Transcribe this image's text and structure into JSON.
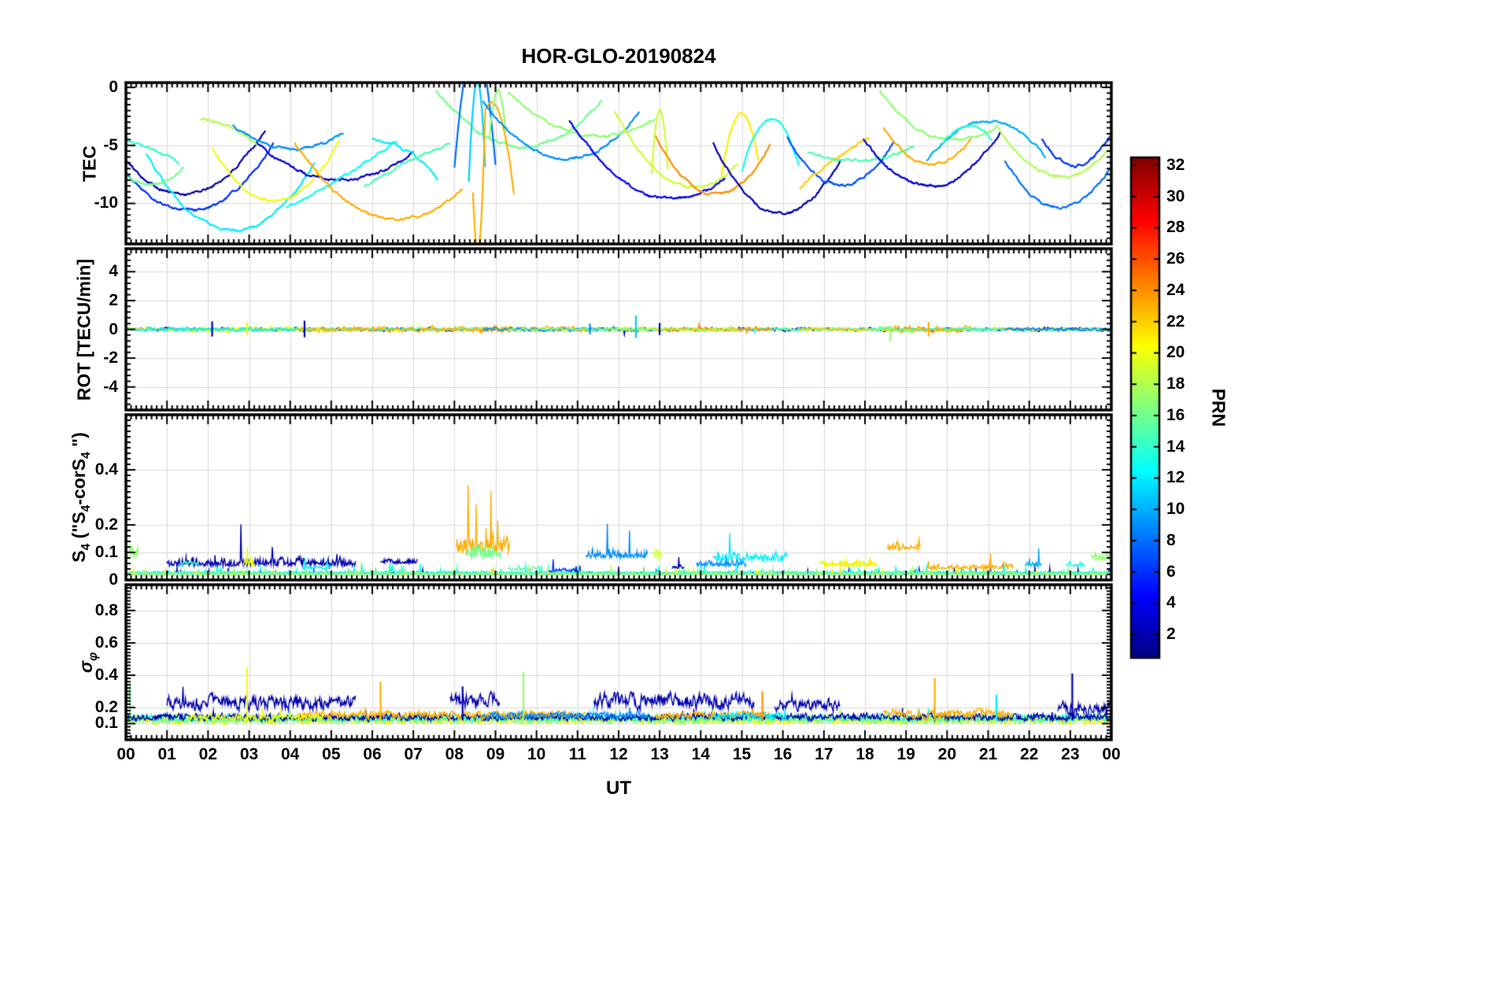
{
  "figure": {
    "title": "HOR-GLO-20190824",
    "xlabel": "UT"
  },
  "x_axis": {
    "range": [
      0,
      24
    ],
    "tick_labels": [
      "00",
      "01",
      "02",
      "03",
      "04",
      "05",
      "06",
      "07",
      "08",
      "09",
      "10",
      "11",
      "12",
      "13",
      "14",
      "15",
      "16",
      "17",
      "18",
      "19",
      "20",
      "21",
      "22",
      "23",
      "00"
    ]
  },
  "colorbar": {
    "label": "PRN",
    "colormap": "jet",
    "range": [
      0.5,
      32.5
    ],
    "ticks": [
      2,
      4,
      6,
      8,
      10,
      12,
      14,
      16,
      18,
      20,
      22,
      24,
      26,
      28,
      30,
      32
    ]
  },
  "chart_data": [
    {
      "type": "line",
      "kind": "tec",
      "ylabel_parts": [
        {
          "text": "TEC"
        }
      ],
      "ylim": [
        -13.5,
        0.4
      ],
      "yticks": [
        {
          "v": 0,
          "label": "0"
        },
        {
          "v": -5,
          "label": "-5"
        },
        {
          "v": -10,
          "label": "-10"
        }
      ],
      "yminor": 0.5,
      "series_format": "[prn, t_start, t_vertex, t_end, tec_start, tec_vertex, tec_end]",
      "series": [
        [
          2,
          0,
          0.9,
          3.4,
          -6.3,
          -8.8,
          -3.6
        ],
        [
          6,
          0,
          1.4,
          3.6,
          -7.3,
          -10.6,
          -4.8
        ],
        [
          12,
          0.5,
          2.9,
          4.6,
          -5.8,
          -12.2,
          -6.5
        ],
        [
          16,
          0,
          0.6,
          1.4,
          -7.6,
          -8.4,
          -7.0
        ],
        [
          14,
          0,
          0.5,
          1.3,
          -4.6,
          -5.1,
          -6.6
        ],
        [
          18,
          1.8,
          2.5,
          3.2,
          -2.8,
          -3.3,
          -5.0
        ],
        [
          20,
          2.1,
          3.6,
          5.2,
          -5.2,
          -9.8,
          -4.6
        ],
        [
          9,
          2.6,
          4.0,
          5.3,
          -3.3,
          -5.3,
          -3.9
        ],
        [
          3,
          3.2,
          5.2,
          7.0,
          -4.9,
          -8.0,
          -5.6
        ],
        [
          13,
          3.9,
          5.6,
          6.6,
          -10.4,
          -7.0,
          -4.6
        ],
        [
          23,
          4.1,
          6.2,
          8.2,
          -4.8,
          -11.2,
          -8.8
        ],
        [
          12,
          6.0,
          6.9,
          7.6,
          -4.5,
          -5.6,
          -7.9
        ],
        [
          15,
          5.8,
          7.0,
          7.9,
          -8.6,
          -6.2,
          -4.9
        ],
        [
          16,
          7.55,
          10.0,
          11.6,
          -0.3,
          -5.0,
          -1.1
        ],
        [
          8,
          8.0,
          8.2,
          9.0,
          -7.0,
          -0.3,
          -6.5
        ],
        [
          11,
          8.35,
          8.5,
          8.75,
          -8.2,
          -0.2,
          -7.0
        ],
        [
          23,
          8.45,
          8.62,
          8.75,
          -9.0,
          -13.2,
          -2.0
        ],
        [
          23,
          8.75,
          9.0,
          9.45,
          -2.0,
          -1.6,
          -9.2
        ],
        [
          17,
          8.85,
          9.05,
          9.25,
          -4.5,
          -0.2,
          -4.0
        ],
        [
          9,
          8.7,
          10.7,
          12.5,
          -1.2,
          -6.2,
          -2.2
        ],
        [
          17,
          9.3,
          11.6,
          12.9,
          -0.4,
          -4.2,
          -2.7
        ],
        [
          4,
          10.8,
          13.2,
          14.6,
          -2.8,
          -9.6,
          -7.8
        ],
        [
          19,
          11.9,
          13.9,
          14.9,
          -2.1,
          -8.6,
          -6.6
        ],
        [
          19,
          12.8,
          13.0,
          13.2,
          -7.5,
          -2.0,
          -7.0
        ],
        [
          24,
          12.9,
          14.4,
          15.7,
          -4.2,
          -9.2,
          -4.9
        ],
        [
          21,
          14.5,
          14.95,
          15.4,
          -7.6,
          -2.3,
          -6.2
        ],
        [
          13,
          15.0,
          15.6,
          16.4,
          -7.2,
          -2.8,
          -6.8
        ],
        [
          2,
          14.3,
          15.8,
          17.4,
          -4.7,
          -10.8,
          -6.3
        ],
        [
          7,
          16.1,
          17.2,
          18.7,
          -4.3,
          -8.3,
          -4.6
        ],
        [
          22,
          16.4,
          17.3,
          18.1,
          -8.7,
          -6.1,
          -4.4
        ],
        [
          15,
          16.6,
          17.8,
          19.2,
          -5.6,
          -6.3,
          -5.1
        ],
        [
          17,
          18.35,
          20.3,
          21.2,
          -0.2,
          -4.6,
          -3.3
        ],
        [
          23,
          18.45,
          19.7,
          20.6,
          -3.4,
          -6.6,
          -4.4
        ],
        [
          3,
          17.95,
          19.6,
          21.3,
          -4.4,
          -8.5,
          -3.8
        ],
        [
          10,
          19.5,
          21.0,
          22.4,
          -6.4,
          -2.9,
          -6.0
        ],
        [
          14,
          19.9,
          20.4,
          21.1,
          -4.8,
          -3.4,
          -4.6
        ],
        [
          8,
          21.4,
          22.9,
          24,
          -6.3,
          -10.3,
          -6.8
        ],
        [
          18,
          21.2,
          23.0,
          24,
          -3.2,
          -7.6,
          -5.2
        ],
        [
          6,
          22.3,
          23.3,
          24,
          -4.4,
          -6.6,
          -4.0
        ]
      ]
    },
    {
      "type": "line",
      "kind": "rot",
      "ylabel_parts": [
        {
          "text": "ROT [TECU/min]"
        }
      ],
      "ylim": [
        -5.6,
        5.6
      ],
      "yticks": [
        {
          "v": 4,
          "label": "4"
        },
        {
          "v": 2,
          "label": "2"
        },
        {
          "v": 0,
          "label": "0"
        },
        {
          "v": -2,
          "label": "-2"
        },
        {
          "v": -4,
          "label": "-4"
        }
      ],
      "yminor": 0.4,
      "series_format": "[prn, t_start, t_end, noise_amplitude_TECU_per_min]",
      "series": [
        [
          2,
          0,
          24,
          0.14
        ],
        [
          18,
          0,
          24,
          0.16
        ],
        [
          21,
          0,
          24,
          0.1
        ],
        [
          13,
          0,
          24,
          0.1
        ],
        [
          20,
          1.5,
          4.8,
          0.22
        ],
        [
          12,
          0.5,
          4.6,
          0.16
        ],
        [
          23,
          4.2,
          9.4,
          0.22
        ],
        [
          23,
          8.6,
          11.2,
          0.22
        ],
        [
          9,
          8.7,
          12.5,
          0.14
        ],
        [
          24,
          12.9,
          15.7,
          0.16
        ],
        [
          19,
          11.9,
          14.9,
          0.14
        ],
        [
          23,
          18.45,
          20.6,
          0.28
        ],
        [
          22,
          16.4,
          18.1,
          0.14
        ],
        [
          16,
          18.3,
          19.2,
          0.2
        ],
        [
          17,
          9.3,
          12.9,
          0.12
        ],
        [
          8,
          21.4,
          24,
          0.12
        ],
        [
          14,
          19.9,
          21.1,
          0.1
        ]
      ],
      "spikes_format": "[prn, t, v_top, v_bottom]",
      "spikes": [
        [
          11,
          12.42,
          0.95,
          -0.6
        ],
        [
          2,
          2.1,
          0.55,
          -0.5
        ],
        [
          2,
          4.35,
          0.6,
          -0.55
        ],
        [
          17,
          18.62,
          0.25,
          -0.85
        ],
        [
          20,
          2.95,
          0.5,
          -0.45
        ],
        [
          23,
          19.55,
          0.5,
          -0.5
        ],
        [
          2,
          13.0,
          0.45,
          -0.4
        ],
        [
          9,
          11.3,
          0.4,
          -0.35
        ]
      ]
    },
    {
      "type": "line",
      "kind": "s4",
      "ylabel_parts": [
        {
          "text": "S"
        },
        {
          "text": "4",
          "sub": true
        },
        {
          "text": " (\"S"
        },
        {
          "text": "4",
          "sub": true
        },
        {
          "text": "-corS"
        },
        {
          "text": "4",
          "sub": true
        },
        {
          "text": " \")"
        }
      ],
      "ylim": [
        0,
        0.6
      ],
      "yticks": [
        {
          "v": 0.4,
          "label": "0.4"
        },
        {
          "v": 0.2,
          "label": "0.2"
        },
        {
          "v": 0.1,
          "label": "0.1"
        },
        {
          "v": 0,
          "label": "0"
        }
      ],
      "yminor": 0.02,
      "series_format": "[prn, t_start, t_end, baseline, burst_amplitude]",
      "series": [
        [
          2,
          0,
          24,
          0.02,
          0.02
        ],
        [
          18,
          0,
          24,
          0.02,
          0.02
        ],
        [
          13,
          0,
          24,
          0.025,
          0.02
        ],
        [
          21,
          0,
          24,
          0.02,
          0.015
        ],
        [
          16,
          0,
          24,
          0.02,
          0.015
        ],
        [
          2,
          1.0,
          5.6,
          0.05,
          0.08
        ],
        [
          2,
          6.2,
          7.1,
          0.06,
          0.05
        ],
        [
          17,
          0.0,
          0.3,
          0.08,
          0.13
        ],
        [
          14,
          1.3,
          1.8,
          0.05,
          0.04
        ],
        [
          20,
          2.85,
          3.15,
          0.05,
          0.07
        ],
        [
          12,
          4.3,
          5.0,
          0.04,
          0.04
        ],
        [
          23,
          8.05,
          9.35,
          0.1,
          0.17
        ],
        [
          16,
          8.3,
          9.15,
          0.08,
          0.14
        ],
        [
          15,
          9.3,
          10.15,
          0.035,
          0.035
        ],
        [
          9,
          11.2,
          12.7,
          0.08,
          0.08
        ],
        [
          19,
          12.85,
          13.05,
          0.08,
          0.1
        ],
        [
          2,
          13.3,
          13.6,
          0.04,
          0.04
        ],
        [
          9,
          13.9,
          15.1,
          0.05,
          0.06
        ],
        [
          12,
          14.3,
          16.1,
          0.07,
          0.08
        ],
        [
          19,
          16.9,
          18.2,
          0.05,
          0.05
        ],
        [
          21,
          17.0,
          18.3,
          0.05,
          0.05
        ],
        [
          23,
          18.55,
          19.35,
          0.11,
          0.08
        ],
        [
          23,
          19.5,
          21.6,
          0.04,
          0.05
        ],
        [
          10,
          21.9,
          22.3,
          0.05,
          0.05
        ],
        [
          13,
          22.9,
          23.35,
          0.05,
          0.05
        ],
        [
          17,
          23.5,
          24,
          0.07,
          0.11
        ],
        [
          6,
          10.3,
          11.0,
          0.03,
          0.03
        ]
      ]
    },
    {
      "type": "line",
      "kind": "sigma",
      "ylabel_parts": [
        {
          "text": "σ",
          "italic": true
        },
        {
          "text": "φ",
          "sub": true,
          "italic": true
        }
      ],
      "ylim": [
        0,
        0.96
      ],
      "yticks": [
        {
          "v": 0.8,
          "label": "0.8"
        },
        {
          "v": 0.6,
          "label": "0.6"
        },
        {
          "v": 0.4,
          "label": "0.4"
        },
        {
          "v": 0.2,
          "label": "0.2"
        },
        {
          "v": 0.1,
          "label": "0.1"
        }
      ],
      "yminor": 0.02,
      "series_format": "[prn, t_start, t_end, baseline, noise_amplitude]",
      "series": [
        [
          18,
          0,
          24,
          0.13,
          0.035
        ],
        [
          21,
          0,
          24,
          0.12,
          0.03
        ],
        [
          13,
          0,
          24,
          0.135,
          0.03
        ],
        [
          16,
          0,
          24,
          0.125,
          0.03
        ],
        [
          2,
          0,
          24,
          0.14,
          0.03
        ],
        [
          2,
          1.0,
          5.6,
          0.23,
          0.06
        ],
        [
          2,
          7.9,
          9.1,
          0.24,
          0.06
        ],
        [
          2,
          11.4,
          15.3,
          0.24,
          0.065
        ],
        [
          2,
          15.8,
          17.4,
          0.21,
          0.05
        ],
        [
          2,
          22.7,
          24,
          0.19,
          0.06
        ],
        [
          23,
          4.2,
          11.2,
          0.155,
          0.035
        ],
        [
          23,
          12.9,
          15.7,
          0.15,
          0.03
        ],
        [
          23,
          18.45,
          21.6,
          0.16,
          0.04
        ],
        [
          9,
          8.7,
          12.7,
          0.15,
          0.03
        ],
        [
          12,
          14.3,
          16.1,
          0.15,
          0.03
        ],
        [
          20,
          1.5,
          4.8,
          0.14,
          0.03
        ]
      ],
      "spikes_format": "[prn, t, v_peak]",
      "spikes": [
        [
          20,
          2.95,
          0.45
        ],
        [
          23,
          6.2,
          0.36
        ],
        [
          2,
          8.2,
          0.33
        ],
        [
          17,
          9.68,
          0.42
        ],
        [
          24,
          15.5,
          0.3
        ],
        [
          23,
          19.7,
          0.38
        ],
        [
          12,
          21.2,
          0.28
        ],
        [
          2,
          23.05,
          0.41
        ],
        [
          16,
          0.1,
          0.35
        ]
      ]
    }
  ]
}
